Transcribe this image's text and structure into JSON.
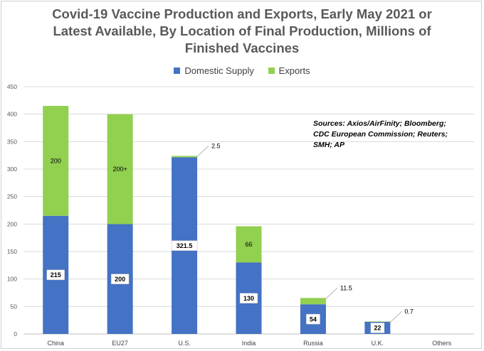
{
  "chart_data": {
    "type": "bar",
    "stacked": true,
    "title": "Covid-19 Vaccine Production and Exports, Early May 2021 or Latest Available, By Location of Final Production, Millions of Finished Vaccines",
    "title_lines": [
      "Covid-19 Vaccine Production and Exports, Early May 2021 or",
      "Latest Available, By Location of Final Production, Millions of",
      "Finished Vaccines"
    ],
    "categories": [
      "China",
      "EU27",
      "U.S.",
      "India",
      "Russia",
      "U.K.",
      "Others"
    ],
    "series": [
      {
        "name": "Domestic Supply",
        "color": "#4472c4",
        "values": [
          215,
          200,
          321.5,
          130,
          54,
          22,
          0
        ],
        "labels": [
          "215",
          "200",
          "321.5",
          "130",
          "54",
          "22",
          ""
        ]
      },
      {
        "name": "Exports",
        "color": "#92d050",
        "values": [
          200,
          200,
          2.5,
          66,
          11.5,
          0.7,
          0
        ],
        "labels": [
          "200",
          "200+",
          "2.5",
          "66",
          "11.5",
          "0.7",
          ""
        ]
      }
    ],
    "ylim": [
      0,
      450
    ],
    "yticks": [
      0,
      50,
      100,
      150,
      200,
      250,
      300,
      350,
      400,
      450
    ],
    "grid": true,
    "legend_position": "top",
    "xlabel": "",
    "ylabel": ""
  },
  "sources_lines": [
    "Sources: Axios/AirFinity; Bloomberg;",
    "CDC European Commission; Reuters;",
    "SMH; AP"
  ]
}
